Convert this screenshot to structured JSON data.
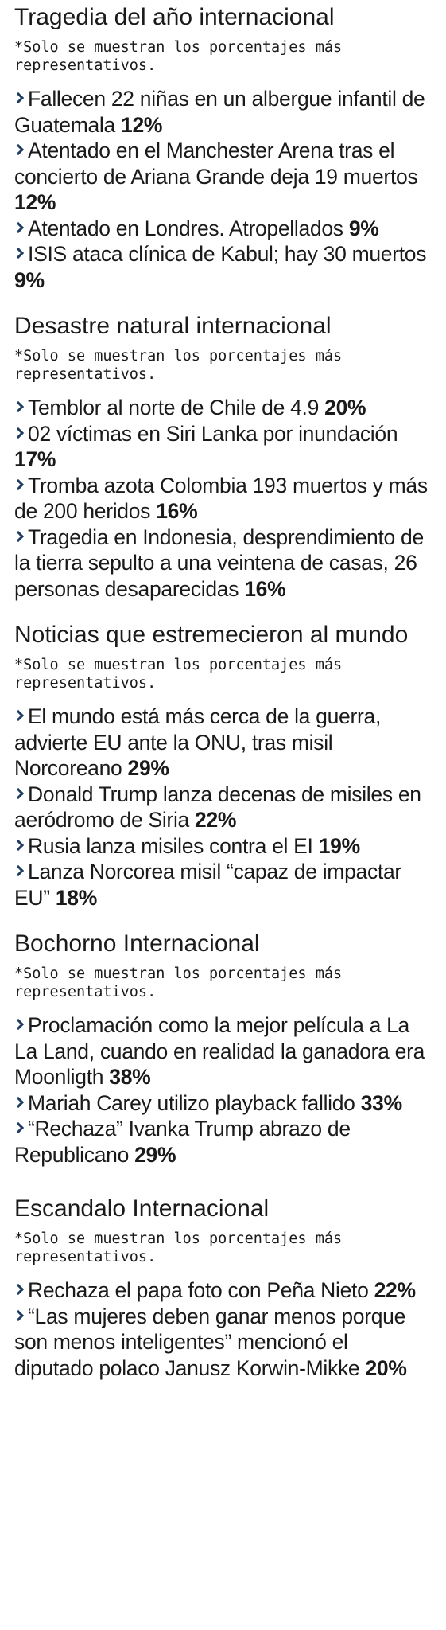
{
  "sections": [
    {
      "title": "Tragedia del año internacional",
      "note": "*Solo se muestran los porcentajes más representativos.",
      "items": [
        {
          "text": "Fallecen 22 niñas en un albergue infantil de Guatemala",
          "percent": "12%"
        },
        {
          "text": "Atentado en el Manchester Arena tras el concierto de Ariana Grande deja 19 muertos",
          "percent": "12%"
        },
        {
          "text": "Atentado en Londres. Atropellados",
          "percent": "9%"
        },
        {
          "text": "ISIS ataca clínica de Kabul; hay 30 muertos",
          "percent": "9%"
        }
      ]
    },
    {
      "title": "Desastre natural internacional",
      "note": "*Solo se muestran los porcentajes más representativos.",
      "items": [
        {
          "text": "Temblor al norte de Chile de 4.9",
          "percent": "20%"
        },
        {
          "text": "02 víctimas en Siri Lanka por inundación",
          "percent": "17%"
        },
        {
          "text": "Tromba azota Colombia 193 muertos y más de 200 heridos",
          "percent": "16%"
        },
        {
          "text": "Tragedia en Indonesia, desprendimiento de la tierra sepulto a una veintena de casas, 26 personas desaparecidas",
          "percent": "16%"
        }
      ]
    },
    {
      "title": "Noticias que estremecieron al mundo",
      "note": "*Solo se muestran los porcentajes más representativos.",
      "items": [
        {
          "text": "El mundo está más cerca de la guerra, advierte EU ante la ONU, tras misil Norcoreano",
          "percent": "29%"
        },
        {
          "text": "Donald Trump lanza decenas de misiles en aeródromo de Siria",
          "percent": "22%"
        },
        {
          "text": "Rusia lanza misiles contra el EI",
          "percent": "19%"
        },
        {
          "text": "Lanza Norcorea misil “capaz de impactar EU”",
          "percent": "18%"
        }
      ]
    },
    {
      "title": "Bochorno Internacional",
      "note": "*Solo se muestran los porcentajes más representativos.",
      "items": [
        {
          "text": "Proclamación como la mejor película a La La Land, cuando en realidad la ganadora era Moonligth",
          "percent": "38%"
        },
        {
          "text": "Mariah Carey utilizo playback fallido",
          "percent": "33%"
        },
        {
          "text": "“Rechaza” Ivanka Trump abrazo de Republicano",
          "percent": "29%"
        }
      ]
    },
    {
      "title": "Escandalo Internacional",
      "note": "*Solo se muestran los porcentajes más representativos.",
      "items": [
        {
          "text": "Rechaza el papa foto con Peña Nieto",
          "percent": "22%"
        },
        {
          "text": "“Las mujeres deben ganar menos porque son menos inteligentes” mencionó el diputado polaco Janusz Korwin-Mikke",
          "percent": "20%"
        }
      ]
    }
  ]
}
